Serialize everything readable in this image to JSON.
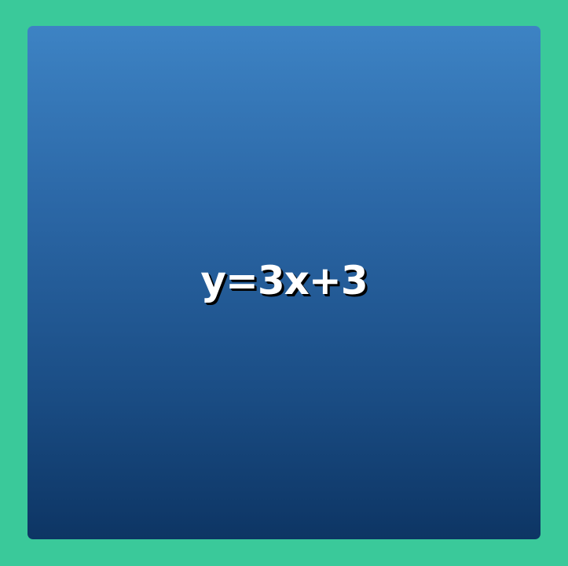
{
  "card": {
    "text": "y=3x+3"
  },
  "colors": {
    "background": "#3ac99a",
    "card_top": "#3d83c4",
    "card_bottom": "#0d3564",
    "text": "#ffffff"
  }
}
